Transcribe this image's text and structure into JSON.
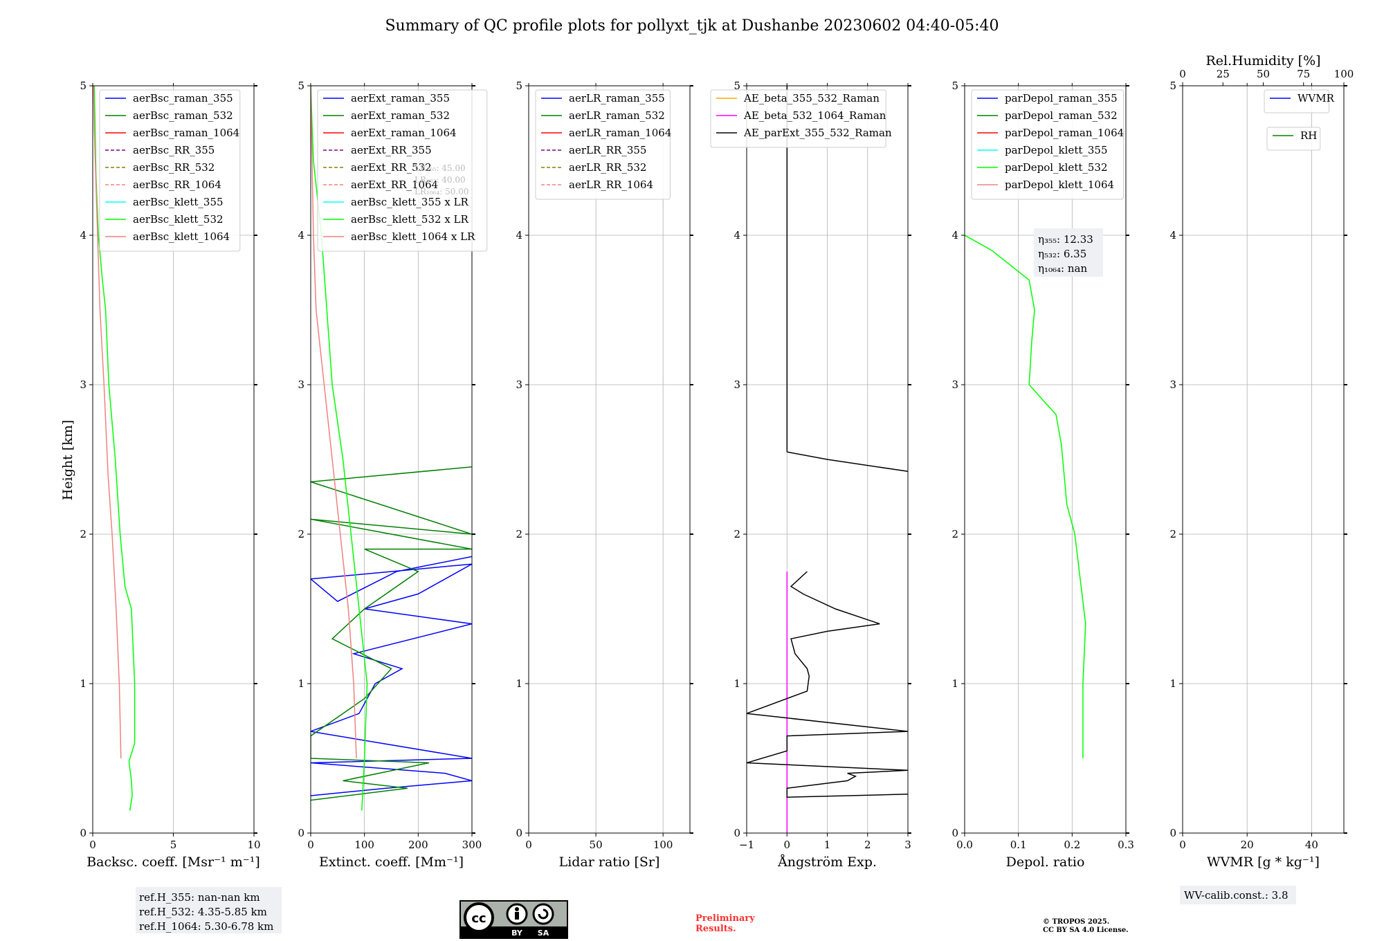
{
  "title": "Summary of QC profile plots for pollyxt_tjk at Dushanbe 20230602 04:40-05:40",
  "ylabel": "Height [km]",
  "colors": {
    "blue": "#0000ff",
    "green": "#008000",
    "red": "#ff0000",
    "purple": "#800080",
    "olive": "#808000",
    "salmon": "#fa8072",
    "cyan": "#00ffff",
    "lime": "#00ff00",
    "lightred": "#f08080",
    "orange": "#ffa500",
    "magenta": "#ff00ff",
    "black": "#000000"
  },
  "chart_data": [
    {
      "type": "line",
      "xlabel": "Backsc. coeff. [Msr⁻¹ m⁻¹]",
      "xlim": [
        0,
        10
      ],
      "ylim": [
        0,
        5
      ],
      "xticks": [
        "0",
        "5",
        "10"
      ],
      "xtickvals": [
        0,
        5,
        10
      ],
      "yticks": [
        "0",
        "1",
        "2",
        "3",
        "4",
        "5"
      ],
      "legend": [
        {
          "label": "aerBsc_raman_355",
          "color": "#0000ff",
          "dash": false
        },
        {
          "label": "aerBsc_raman_532",
          "color": "#008000",
          "dash": false
        },
        {
          "label": "aerBsc_raman_1064",
          "color": "#ff0000",
          "dash": false
        },
        {
          "label": "aerBsc_RR_355",
          "color": "#800080",
          "dash": true
        },
        {
          "label": "aerBsc_RR_532",
          "color": "#808000",
          "dash": true
        },
        {
          "label": "aerBsc_RR_1064",
          "color": "#fa8072",
          "dash": true
        },
        {
          "label": "aerBsc_klett_355",
          "color": "#00ffff",
          "dash": false
        },
        {
          "label": "aerBsc_klett_532",
          "color": "#00ff00",
          "dash": false
        },
        {
          "label": "aerBsc_klett_1064",
          "color": "#f08080",
          "dash": false
        }
      ],
      "series": [
        {
          "name": "aerBsc_klett_532",
          "color": "#00ff00",
          "points": [
            [
              2.3,
              0.15
            ],
            [
              2.45,
              0.25
            ],
            [
              2.4,
              0.35
            ],
            [
              2.25,
              0.48
            ],
            [
              2.6,
              0.6
            ],
            [
              2.6,
              1.0
            ],
            [
              2.4,
              1.5
            ],
            [
              2.0,
              1.65
            ],
            [
              1.7,
              2.0
            ],
            [
              1.4,
              2.5
            ],
            [
              1.0,
              3.0
            ],
            [
              0.8,
              3.5
            ],
            [
              0.6,
              3.7
            ],
            [
              0.35,
              4.0
            ],
            [
              0.2,
              4.4
            ],
            [
              0.1,
              5.0
            ]
          ]
        },
        {
          "name": "aerBsc_klett_1064",
          "color": "#f08080",
          "points": [
            [
              1.75,
              0.5
            ],
            [
              1.65,
              1.0
            ],
            [
              1.45,
              1.5
            ],
            [
              1.2,
              2.0
            ],
            [
              0.95,
              2.4
            ],
            [
              0.7,
              3.0
            ],
            [
              0.45,
              3.5
            ],
            [
              0.3,
              4.0
            ],
            [
              0.1,
              4.7
            ],
            [
              0.05,
              5.0
            ]
          ]
        }
      ]
    },
    {
      "type": "line",
      "xlabel": "Extinct. coeff. [Mm⁻¹]",
      "xlim": [
        0,
        300
      ],
      "ylim": [
        0,
        5
      ],
      "xticks": [
        "0",
        "100",
        "200",
        "300"
      ],
      "xtickvals": [
        0,
        100,
        200,
        300
      ],
      "yticks": [
        "0",
        "1",
        "2",
        "3",
        "4",
        "5"
      ],
      "legend": [
        {
          "label": "aerExt_raman_355",
          "color": "#0000ff",
          "dash": false
        },
        {
          "label": "aerExt_raman_532",
          "color": "#008000",
          "dash": false
        },
        {
          "label": "aerExt_raman_1064",
          "color": "#ff0000",
          "dash": false
        },
        {
          "label": "aerExt_RR_355",
          "color": "#800080",
          "dash": true
        },
        {
          "label": "aerExt_RR_532",
          "color": "#808000",
          "dash": true
        },
        {
          "label": "aerExt_RR_1064",
          "color": "#fa8072",
          "dash": true
        },
        {
          "label": "aerBsc_klett_355 x LR",
          "color": "#00ffff",
          "dash": false
        },
        {
          "label": "aerBsc_klett_532 x LR",
          "color": "#00ff00",
          "dash": false
        },
        {
          "label": "aerBsc_klett_1064 x LR",
          "color": "#f08080",
          "dash": false
        }
      ],
      "lr_notes": [
        "LR₃₅₅: 45.00",
        "LR₅₃₂: 40.00",
        "LR₁₀₆₄: 50.00"
      ],
      "series": [
        {
          "name": "aerExt_raman_355",
          "color": "#0000ff",
          "points": [
            [
              0,
              0.25
            ],
            [
              140,
              0.3
            ],
            [
              300,
              0.35
            ],
            [
              250,
              0.4
            ],
            [
              0,
              0.47
            ],
            [
              300,
              0.5
            ],
            [
              0,
              0.68
            ],
            [
              90,
              0.8
            ],
            [
              120,
              1.0
            ],
            [
              170,
              1.1
            ],
            [
              80,
              1.2
            ],
            [
              300,
              1.4
            ],
            [
              100,
              1.5
            ],
            [
              200,
              1.6
            ],
            [
              300,
              1.8
            ],
            [
              0,
              1.7
            ],
            [
              50,
              1.55
            ],
            [
              160,
              1.75
            ],
            [
              300,
              1.85
            ]
          ]
        },
        {
          "name": "aerExt_raman_532",
          "color": "#008000",
          "points": [
            [
              0,
              0.22
            ],
            [
              180,
              0.3
            ],
            [
              60,
              0.35
            ],
            [
              220,
              0.47
            ],
            [
              0,
              0.5
            ],
            [
              0,
              0.65
            ],
            [
              100,
              0.9
            ],
            [
              150,
              1.1
            ],
            [
              40,
              1.3
            ],
            [
              100,
              1.5
            ],
            [
              200,
              1.75
            ],
            [
              100,
              1.9
            ],
            [
              300,
              1.9
            ],
            [
              0,
              2.1
            ],
            [
              300,
              2.0
            ],
            [
              0,
              2.35
            ],
            [
              300,
              2.45
            ],
            [
              150,
              2.4
            ]
          ]
        },
        {
          "name": "aerBsc_klett_532 x LR",
          "color": "#00ff00",
          "points": [
            [
              95,
              0.15
            ],
            [
              100,
              0.5
            ],
            [
              105,
              1.0
            ],
            [
              90,
              1.5
            ],
            [
              75,
              2.0
            ],
            [
              60,
              2.5
            ],
            [
              40,
              3.0
            ],
            [
              30,
              3.5
            ],
            [
              20,
              4.0
            ],
            [
              5,
              4.5
            ],
            [
              0,
              5.0
            ]
          ]
        },
        {
          "name": "aerBsc_klett_1064 x LR",
          "color": "#f08080",
          "points": [
            [
              85,
              0.5
            ],
            [
              80,
              1.0
            ],
            [
              70,
              1.5
            ],
            [
              55,
              2.0
            ],
            [
              40,
              2.5
            ],
            [
              25,
              3.0
            ],
            [
              10,
              3.5
            ],
            [
              5,
              4.0
            ],
            [
              0,
              5.0
            ]
          ]
        }
      ]
    },
    {
      "type": "line",
      "xlabel": "Lidar ratio [Sr]",
      "xlim": [
        0,
        120
      ],
      "ylim": [
        0,
        5
      ],
      "xticks": [
        "0",
        "50",
        "100"
      ],
      "xtickvals": [
        0,
        50,
        100
      ],
      "yticks": [
        "0",
        "1",
        "2",
        "3",
        "4",
        "5"
      ],
      "legend": [
        {
          "label": "aerLR_raman_355",
          "color": "#0000ff",
          "dash": false
        },
        {
          "label": "aerLR_raman_532",
          "color": "#008000",
          "dash": false
        },
        {
          "label": "aerLR_raman_1064",
          "color": "#ff0000",
          "dash": false
        },
        {
          "label": "aerLR_RR_355",
          "color": "#800080",
          "dash": true
        },
        {
          "label": "aerLR_RR_532",
          "color": "#808000",
          "dash": true
        },
        {
          "label": "aerLR_RR_1064",
          "color": "#fa8072",
          "dash": true
        }
      ],
      "series": []
    },
    {
      "type": "line",
      "xlabel": "Ångström Exp.",
      "xlim": [
        -1,
        3
      ],
      "ylim": [
        0,
        5
      ],
      "xticks": [
        "−1",
        "0",
        "1",
        "2",
        "3"
      ],
      "xtickvals": [
        -1,
        0,
        1,
        2,
        3
      ],
      "yticks": [
        "0",
        "1",
        "2",
        "3",
        "4",
        "5"
      ],
      "legend": [
        {
          "label": "AE_beta_355_532_Raman",
          "color": "#ffa500",
          "dash": false
        },
        {
          "label": "AE_beta_532_1064_Raman",
          "color": "#ff00ff",
          "dash": false
        },
        {
          "label": "AE_parExt_355_532_Raman",
          "color": "#000000",
          "dash": false
        }
      ],
      "series": [
        {
          "name": "AE_beta_532_1064_Raman",
          "color": "#ff00ff",
          "points": [
            [
              0,
              0
            ],
            [
              0,
              1.75
            ]
          ]
        },
        {
          "name": "AE_parExt_355_532_Raman",
          "color": "#000000",
          "points": [
            [
              3,
              0.26
            ],
            [
              0,
              0.24
            ],
            [
              0,
              0.3
            ],
            [
              1.5,
              0.35
            ],
            [
              1.7,
              0.38
            ],
            [
              1.5,
              0.4
            ],
            [
              3,
              0.42
            ],
            [
              -1,
              0.47
            ],
            [
              0,
              0.55
            ],
            [
              0,
              0.6
            ],
            [
              0,
              0.65
            ],
            [
              3,
              0.68
            ],
            [
              -1,
              0.8
            ],
            [
              0.5,
              0.95
            ],
            [
              0.55,
              1.05
            ],
            [
              0.5,
              1.1
            ],
            [
              0.2,
              1.2
            ],
            [
              0.1,
              1.3
            ],
            [
              1,
              1.35
            ],
            [
              2.3,
              1.4
            ],
            [
              1.2,
              1.5
            ],
            [
              0.4,
              1.6
            ],
            [
              0.1,
              1.65
            ],
            [
              0.5,
              1.75
            ]
          ]
        },
        {
          "name": "AE_parExt_355_532_Raman_upper",
          "color": "#000000",
          "points": [
            [
              0,
              2.55
            ],
            [
              1,
              2.5
            ],
            [
              3,
              2.42
            ]
          ]
        },
        {
          "name": "AE_parExt_355_532_Raman_top",
          "color": "#000000",
          "points": [
            [
              0,
              2.55
            ],
            [
              0,
              5
            ]
          ]
        }
      ]
    },
    {
      "type": "line",
      "xlabel": "Depol. ratio",
      "xlim": [
        0,
        0.3
      ],
      "ylim": [
        0,
        5
      ],
      "xticks": [
        "0.0",
        "0.1",
        "0.2",
        "0.3"
      ],
      "xtickvals": [
        0,
        0.1,
        0.2,
        0.3
      ],
      "yticks": [
        "0",
        "1",
        "2",
        "3",
        "4",
        "5"
      ],
      "legend": [
        {
          "label": "parDepol_raman_355",
          "color": "#0000ff",
          "dash": false
        },
        {
          "label": "parDepol_raman_532",
          "color": "#008000",
          "dash": false
        },
        {
          "label": "parDepol_raman_1064",
          "color": "#ff0000",
          "dash": false
        },
        {
          "label": "parDepol_klett_355",
          "color": "#00ffff",
          "dash": false
        },
        {
          "label": "parDepol_klett_532",
          "color": "#00ff00",
          "dash": false
        },
        {
          "label": "parDepol_klett_1064",
          "color": "#f08080",
          "dash": false
        }
      ],
      "eta": [
        "η₃₅₅: 12.33",
        "η₅₃₂: 6.35",
        "η₁₀₆₄: nan"
      ],
      "series": [
        {
          "name": "parDepol_klett_532",
          "color": "#00ff00",
          "points": [
            [
              0.22,
              0.5
            ],
            [
              0.22,
              1.0
            ],
            [
              0.225,
              1.4
            ],
            [
              0.215,
              1.7
            ],
            [
              0.205,
              2.0
            ],
            [
              0.19,
              2.2
            ],
            [
              0.18,
              2.6
            ],
            [
              0.17,
              2.8
            ],
            [
              0.12,
              3.0
            ],
            [
              0.125,
              3.3
            ],
            [
              0.13,
              3.5
            ],
            [
              0.12,
              3.7
            ],
            [
              0.05,
              3.9
            ],
            [
              0.0,
              4.0
            ]
          ]
        }
      ]
    },
    {
      "type": "line",
      "xlabel": "WVMR [g * kg⁻¹]",
      "xlim": [
        0,
        50
      ],
      "ylim": [
        0,
        5
      ],
      "xticks": [
        "0",
        "20",
        "40"
      ],
      "xtickvals": [
        0,
        20,
        40
      ],
      "yticks": [
        "0",
        "1",
        "2",
        "3",
        "4",
        "5"
      ],
      "top_xlabel": "Rel.Humidity [%]",
      "top_xticks": [
        "0",
        "25",
        "50",
        "75",
        "100"
      ],
      "top_xtickvals": [
        0,
        25,
        50,
        75,
        100
      ],
      "legend": [
        {
          "label": "WVMR",
          "color": "#0000ff",
          "dash": false
        }
      ],
      "legend2": [
        {
          "label": "RH",
          "color": "#008000",
          "dash": false
        }
      ],
      "series": []
    }
  ],
  "footer": {
    "refH": [
      "ref.H_355: nan-nan km",
      "ref.H_532: 4.35-5.85 km",
      "ref.H_1064: 5.30-6.78 km"
    ],
    "cc_by": "BY",
    "cc_sa": "SA",
    "cc_mark": "cc",
    "preliminary": [
      "Preliminary",
      "Results."
    ],
    "tropos": [
      "© TROPOS 2025.",
      "CC BY SA 4.0 License."
    ],
    "wv_calib": "WV-calib.const.: 3.8"
  }
}
